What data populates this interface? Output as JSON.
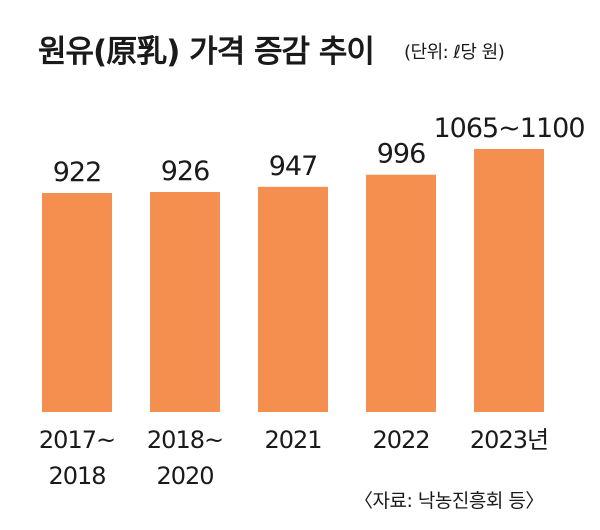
{
  "chart_data": {
    "type": "bar",
    "title": "원유(原乳) 가격 증감 추이",
    "unit_note": "(단위: ℓ당 원)",
    "source": "〈자료: 낙농진흥회 등〉",
    "categories": [
      [
        "2017~",
        "2018"
      ],
      [
        "2018~",
        "2020"
      ],
      [
        "2021"
      ],
      [
        "2022"
      ],
      [
        "2023년"
      ]
    ],
    "value_labels": [
      "922",
      "926",
      "947",
      "996",
      "1065~1100"
    ],
    "values": [
      922,
      926,
      947,
      996,
      1100
    ],
    "value_ranges": [
      null,
      null,
      null,
      null,
      [
        1065,
        1100
      ]
    ],
    "ylim": [
      0,
      1120
    ],
    "grid": false,
    "bar_color": "#f58f50"
  }
}
